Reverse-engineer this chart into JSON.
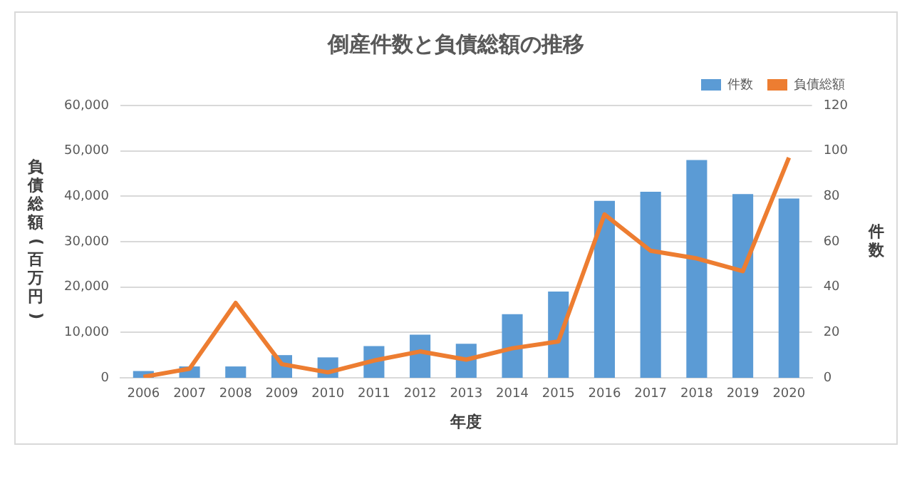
{
  "chart_data": {
    "type": "bar",
    "title": "倒産件数と負債総額の推移",
    "xlabel": "年度",
    "ylabel": "負債総額(百万円)",
    "y2label": "件数",
    "categories": [
      "2006",
      "2007",
      "2008",
      "2009",
      "2010",
      "2011",
      "2012",
      "2013",
      "2014",
      "2015",
      "2016",
      "2017",
      "2018",
      "2019",
      "2020"
    ],
    "series": [
      {
        "name": "件数",
        "axis": "y2",
        "color": "#5b9bd5",
        "values": [
          3,
          5,
          5,
          10,
          9,
          14,
          19,
          15,
          28,
          38,
          78,
          82,
          96,
          81,
          79
        ]
      },
      {
        "name": "負債総額",
        "type": "line",
        "axis": "y",
        "color": "#ed7d31",
        "values": [
          200,
          2000,
          16500,
          3000,
          1200,
          3800,
          5800,
          4000,
          6500,
          8000,
          36000,
          28000,
          26300,
          23500,
          48500
        ]
      }
    ],
    "ylim": [
      0,
      60000
    ],
    "yticks": [
      0,
      {
        "value": 10000,
        "label": "10,000"
      },
      {
        "value": 20000,
        "label": "20,000"
      },
      {
        "value": 30000,
        "label": "30,000"
      },
      {
        "value": 40000,
        "label": "40,000"
      },
      {
        "value": 50000,
        "label": "50,000"
      },
      {
        "value": 60000,
        "label": "60,000"
      }
    ],
    "y2lim": [
      0,
      120
    ],
    "y2ticks": [
      0,
      20,
      40,
      60,
      80,
      100,
      120
    ],
    "grid": "y",
    "legend": "top right",
    "marker": "none"
  }
}
